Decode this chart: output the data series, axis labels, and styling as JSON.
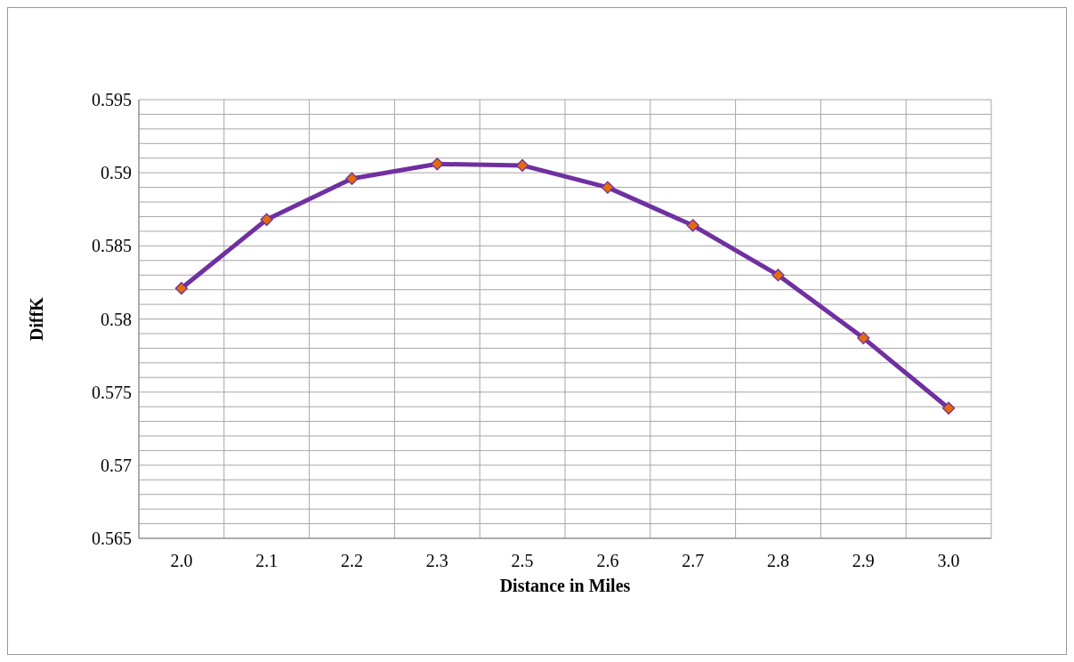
{
  "chart_data": {
    "type": "line",
    "xlabel": "Distance in Miles",
    "ylabel": "DiffK",
    "categories": [
      "2.0",
      "2.1",
      "2.2",
      "2.3",
      "2.5",
      "2.6",
      "2.7",
      "2.8",
      "2.9",
      "3.0"
    ],
    "series": [
      {
        "color": "#7030a0",
        "colors": [
          "#e46c0a",
          "#e46c0a",
          "#e46c0a",
          "#e46c0a",
          "#e46c0a",
          "#e46c0a",
          "#e46c0a",
          "#e46c0a",
          "#e46c0a",
          "#e46c0a"
        ],
        "values": [
          0.5821,
          0.5868,
          0.5896,
          0.5906,
          0.5905,
          0.589,
          0.5864,
          0.583,
          0.5787,
          0.5739
        ]
      }
    ],
    "ylim": [
      0.565,
      0.595
    ],
    "yticks": [
      0.565,
      {
        "value": 0.566,
        "label": null
      },
      {
        "value": 0.567,
        "label": null
      },
      {
        "value": 0.568,
        "label": null
      },
      {
        "value": 0.569,
        "label": null
      },
      0.57,
      {
        "value": 0.571,
        "label": null
      },
      {
        "value": 0.572,
        "label": null
      },
      {
        "value": 0.573,
        "label": null
      },
      {
        "value": 0.574,
        "label": null
      },
      0.575,
      {
        "value": 0.576,
        "label": null
      },
      {
        "value": 0.577,
        "label": null
      },
      {
        "value": 0.578,
        "label": null
      },
      {
        "value": 0.579,
        "label": null
      },
      0.58,
      {
        "value": 0.581,
        "label": null
      },
      {
        "value": 0.582,
        "label": null
      },
      {
        "value": 0.583,
        "label": null
      },
      {
        "value": 0.584,
        "label": null
      },
      0.585,
      {
        "value": 0.586,
        "label": null
      },
      {
        "value": 0.587,
        "label": null
      },
      {
        "value": 0.588,
        "label": null
      },
      {
        "value": 0.589,
        "label": null
      },
      0.59,
      {
        "value": 0.591,
        "label": null
      },
      {
        "value": 0.592,
        "label": null
      },
      {
        "value": 0.593,
        "label": null
      },
      {
        "value": 0.594,
        "label": null
      },
      0.595
    ],
    "grid": true,
    "marker": "diamond",
    "line_style": "solid"
  }
}
